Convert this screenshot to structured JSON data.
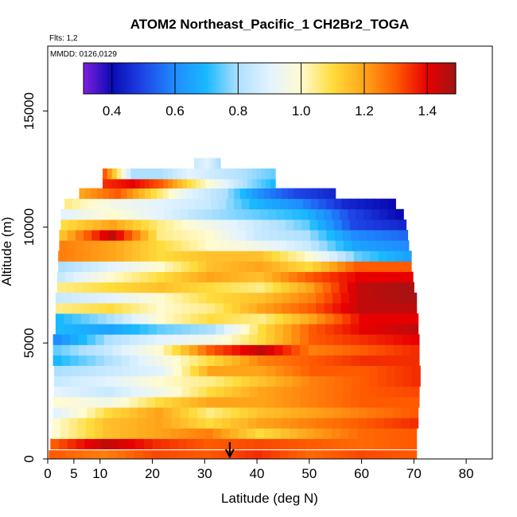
{
  "chart_data": {
    "type": "heatmap",
    "title": "ATOM2 Northeast_Pacific_1 CH2Br2_TOGA",
    "flights_label": "Flts: 1,2",
    "dates_label": "MMDD: 0126,0129",
    "xlabel": "Latitude (deg N)",
    "ylabel": "Altitude (m)",
    "xlim": [
      0,
      85
    ],
    "ylim": [
      0,
      17800
    ],
    "x_ticks": [
      0,
      5,
      10,
      20,
      30,
      40,
      50,
      60,
      70,
      80
    ],
    "y_ticks": [
      0,
      5000,
      10000,
      15000
    ],
    "colorbar": {
      "range": [
        0.31,
        1.49
      ],
      "ticks": [
        0.4,
        0.6,
        0.8,
        1.0,
        1.2,
        1.4
      ],
      "tick_labels": [
        "0.4",
        "0.6",
        "0.8",
        "1.0",
        "1.2",
        "1.4"
      ],
      "stops": [
        {
          "v": 0.31,
          "c": "#7f1fe0"
        },
        {
          "v": 0.4,
          "c": "#0a0ab4"
        },
        {
          "v": 0.5,
          "c": "#1e46e6"
        },
        {
          "v": 0.6,
          "c": "#1f8cff"
        },
        {
          "v": 0.7,
          "c": "#19b9ff"
        },
        {
          "v": 0.8,
          "c": "#aee0ff"
        },
        {
          "v": 0.9,
          "c": "#e3f3ff"
        },
        {
          "v": 1.0,
          "c": "#fffbd0"
        },
        {
          "v": 1.1,
          "c": "#ffdc3c"
        },
        {
          "v": 1.2,
          "c": "#ffa419"
        },
        {
          "v": 1.3,
          "c": "#ff5a00"
        },
        {
          "v": 1.4,
          "c": "#e80000"
        },
        {
          "v": 1.49,
          "c": "#a01414"
        }
      ]
    },
    "arrow_latitude": 34.8,
    "bands": [
      {
        "alt": 150,
        "lat_min": 0.2,
        "lat_max": 70.5,
        "values": [
          1.3,
          1.25,
          1.32,
          1.3,
          1.35,
          1.28,
          1.32,
          1.3
        ]
      },
      {
        "alt": 650,
        "lat_min": 0.5,
        "lat_max": 70.5,
        "values": [
          1.3,
          1.45,
          1.35,
          1.3,
          1.32,
          1.3,
          1.28,
          1.3
        ]
      },
      {
        "alt": 1100,
        "lat_min": 0.8,
        "lat_max": 70.5,
        "values": [
          1.0,
          1.15,
          1.2,
          1.25,
          1.1,
          1.2,
          1.28,
          1.3
        ]
      },
      {
        "alt": 1550,
        "lat_min": 0.8,
        "lat_max": 70.8,
        "values": [
          1.0,
          1.15,
          1.2,
          1.1,
          1.2,
          1.25,
          1.3,
          1.35
        ]
      },
      {
        "alt": 2000,
        "lat_min": 1.0,
        "lat_max": 70.8,
        "values": [
          0.9,
          1.1,
          1.2,
          1.05,
          1.15,
          1.2,
          1.25,
          1.3
        ]
      },
      {
        "alt": 2450,
        "lat_min": 1.0,
        "lat_max": 71.0,
        "values": [
          1.0,
          0.95,
          1.1,
          1.2,
          1.2,
          1.25,
          1.3,
          1.3
        ]
      },
      {
        "alt": 2900,
        "lat_min": 1.2,
        "lat_max": 71.0,
        "values": [
          0.9,
          0.85,
          0.95,
          1.1,
          1.2,
          1.25,
          1.3,
          1.32
        ]
      },
      {
        "alt": 3350,
        "lat_min": 1.2,
        "lat_max": 71.2,
        "values": [
          0.85,
          0.9,
          1.0,
          1.05,
          1.15,
          1.25,
          1.3,
          1.35
        ]
      },
      {
        "alt": 3800,
        "lat_min": 1.2,
        "lat_max": 71.2,
        "values": [
          0.8,
          0.85,
          0.9,
          1.2,
          1.2,
          1.3,
          1.3,
          1.35
        ]
      },
      {
        "alt": 4250,
        "lat_min": 1.0,
        "lat_max": 71.0,
        "values": [
          0.7,
          0.8,
          0.95,
          1.1,
          1.25,
          1.3,
          1.35,
          1.35
        ]
      },
      {
        "alt": 4700,
        "lat_min": 1.0,
        "lat_max": 71.0,
        "values": [
          0.75,
          0.85,
          1.0,
          1.3,
          1.45,
          1.25,
          1.3,
          1.35
        ]
      },
      {
        "alt": 5150,
        "lat_min": 1.0,
        "lat_max": 71.0,
        "values": [
          0.6,
          0.8,
          0.9,
          0.95,
          1.1,
          1.3,
          1.35,
          1.4
        ]
      },
      {
        "alt": 5600,
        "lat_min": 1.5,
        "lat_max": 70.8,
        "values": [
          0.7,
          0.65,
          0.75,
          0.8,
          1.1,
          1.3,
          1.4,
          1.45
        ]
      },
      {
        "alt": 6050,
        "lat_min": 1.5,
        "lat_max": 70.8,
        "values": [
          0.7,
          0.8,
          1.0,
          1.1,
          1.05,
          1.2,
          1.4,
          1.4
        ]
      },
      {
        "alt": 6500,
        "lat_min": 1.5,
        "lat_max": 70.5,
        "values": [
          1.05,
          1.1,
          1.0,
          1.05,
          1.2,
          1.3,
          1.45,
          1.45
        ]
      },
      {
        "alt": 6950,
        "lat_min": 1.5,
        "lat_max": 70.5,
        "values": [
          0.85,
          0.9,
          1.0,
          1.1,
          1.15,
          1.25,
          1.45,
          1.48
        ]
      },
      {
        "alt": 7400,
        "lat_min": 1.8,
        "lat_max": 70.0,
        "values": [
          1.05,
          1.1,
          1.15,
          1.1,
          1.05,
          1.2,
          1.45,
          1.48
        ]
      },
      {
        "alt": 7850,
        "lat_min": 1.8,
        "lat_max": 69.8,
        "values": [
          0.85,
          1.0,
          1.1,
          1.2,
          1.15,
          1.3,
          1.4,
          1.4
        ]
      },
      {
        "alt": 8300,
        "lat_min": 2.0,
        "lat_max": 69.5,
        "values": [
          0.8,
          0.9,
          1.0,
          1.15,
          1.2,
          1.1,
          1.3,
          1.3
        ]
      },
      {
        "alt": 8750,
        "lat_min": 2.0,
        "lat_max": 69.5,
        "values": [
          1.25,
          1.2,
          1.1,
          1.15,
          1.15,
          1.0,
          0.75,
          0.65
        ]
      },
      {
        "alt": 9200,
        "lat_min": 2.2,
        "lat_max": 69.0,
        "values": [
          1.25,
          1.2,
          1.1,
          1.0,
          0.95,
          0.85,
          0.65,
          0.6
        ]
      },
      {
        "alt": 9650,
        "lat_min": 2.2,
        "lat_max": 68.8,
        "values": [
          1.15,
          1.45,
          1.05,
          1.0,
          0.85,
          0.8,
          0.6,
          0.55
        ]
      },
      {
        "alt": 10100,
        "lat_min": 2.5,
        "lat_max": 68.5,
        "values": [
          1.1,
          1.2,
          1.05,
          0.95,
          0.85,
          0.75,
          0.5,
          0.45
        ]
      },
      {
        "alt": 10550,
        "lat_min": 2.5,
        "lat_max": 68.0,
        "values": [
          0.9,
          1.0,
          0.9,
          0.8,
          0.75,
          0.7,
          0.5,
          0.4
        ]
      },
      {
        "alt": 11000,
        "lat_min": 3.2,
        "lat_max": 66.5,
        "values": [
          1.05,
          0.95,
          0.9,
          0.85,
          0.7,
          0.6,
          0.45,
          0.4
        ]
      },
      {
        "alt": 11450,
        "lat_min": 6.0,
        "lat_max": 55.0,
        "values": [
          1.2,
          1.3,
          1.1,
          0.9,
          0.8,
          0.6,
          0.5,
          0.45
        ]
      },
      {
        "alt": 11900,
        "lat_min": 10.5,
        "lat_max": 43.5,
        "values": [
          1.35,
          1.4,
          1.3,
          1.1,
          0.95,
          0.8,
          0.7
        ]
      },
      {
        "alt": 12300,
        "lat_min": 10.5,
        "lat_max": 43.5,
        "values": [
          1.3,
          0.8,
          0.8,
          0.9,
          0.85,
          0.8,
          0.75
        ]
      },
      {
        "alt": 12750,
        "lat_min": 28.0,
        "lat_max": 33.0,
        "values": [
          0.85,
          0.9,
          0.8
        ]
      }
    ]
  }
}
